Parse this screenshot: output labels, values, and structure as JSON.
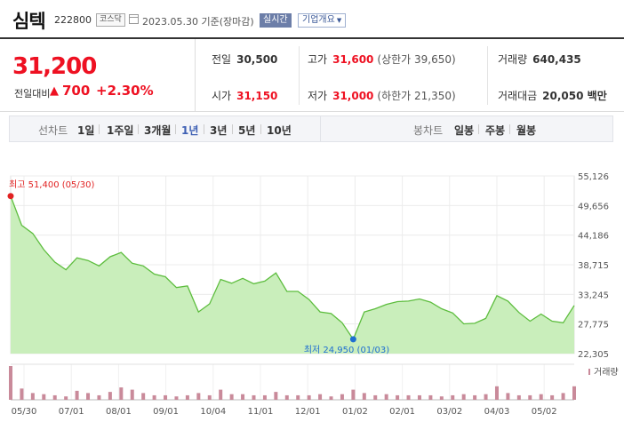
{
  "header": {
    "stock_name": "심텍",
    "stock_code": "222800",
    "market": "코스닥",
    "base_date": "2023.05.30 기준(장마감)",
    "realtime_label": "실시간",
    "company_info_label": "기업개요"
  },
  "quote": {
    "current_price": "31,200",
    "change_label": "전일대비",
    "change_arrow": "▲",
    "change_amount": "700",
    "change_rate": "+2.30%",
    "prev_close_label": "전일",
    "prev_close": "30,500",
    "high_label": "고가",
    "high": "31,600",
    "upper_limit": "(상한가 39,650)",
    "volume_label": "거래량",
    "volume": "640,435",
    "open_label": "시가",
    "open": "31,150",
    "low_label": "저가",
    "low": "31,000",
    "lower_limit": "(하한가 21,350)",
    "trade_value_label": "거래대금",
    "trade_value": "20,050 백만",
    "up_color": "#e12222"
  },
  "period_bar": {
    "line_label": "선차트",
    "periods": [
      "1일",
      "1주일",
      "3개월",
      "1년",
      "3년",
      "5년",
      "10년"
    ],
    "active_period": "1년",
    "candle_label": "봉차트",
    "candle_periods": [
      "일봉",
      "주봉",
      "월봉"
    ]
  },
  "chart_data": {
    "type": "area",
    "y_ticks": [
      "55,126",
      "49,656",
      "44,186",
      "38,715",
      "33,245",
      "27,775",
      "22,305"
    ],
    "x_ticks": [
      "05/30",
      "07/01",
      "08/01",
      "09/01",
      "10/04",
      "11/01",
      "12/01",
      "01/02",
      "02/01",
      "03/02",
      "04/03",
      "05/02"
    ],
    "ylim": [
      22305,
      55126
    ],
    "high_annotation": "최고 51,400 (05/30)",
    "low_annotation": "최저 24,950 (01/03)",
    "volume_label": "거래량",
    "line_color": "#5dbd3e",
    "fill_color": "#c9eebb",
    "high_color": "#e12222",
    "low_color": "#1f6fd1",
    "x": [
      0,
      1,
      2,
      3,
      4,
      5,
      6,
      7,
      8,
      9,
      10,
      11,
      12,
      13,
      14,
      15,
      16,
      17,
      18,
      19,
      20,
      21,
      22,
      23,
      24,
      25,
      26,
      27,
      28,
      29,
      30,
      31,
      32,
      33,
      34,
      35,
      36,
      37,
      38,
      39,
      40,
      41,
      42,
      43,
      44,
      45,
      46,
      47,
      48,
      49,
      50,
      51
    ],
    "y": [
      51400,
      46000,
      44500,
      41500,
      39200,
      37800,
      40000,
      39500,
      38500,
      40200,
      41000,
      39000,
      38500,
      37000,
      36500,
      34500,
      34800,
      30000,
      31500,
      36000,
      35300,
      36200,
      35200,
      35700,
      37200,
      33800,
      33800,
      32300,
      30000,
      29700,
      28000,
      24950,
      30000,
      30600,
      31400,
      31900,
      32000,
      32400,
      31800,
      30600,
      29800,
      27800,
      27900,
      28800,
      33000,
      32000,
      29900,
      28300,
      29600,
      28300,
      28000,
      31200
    ],
    "volumes": [
      30,
      10,
      6,
      5,
      4,
      3,
      8,
      6,
      4,
      7,
      11,
      9,
      6,
      4,
      4,
      3,
      4,
      6,
      4,
      9,
      5,
      5,
      4,
      4,
      7,
      4,
      4,
      4,
      5,
      3,
      5,
      9,
      6,
      4,
      5,
      4,
      4,
      4,
      4,
      3,
      4,
      5,
      4,
      5,
      12,
      6,
      4,
      4,
      5,
      4,
      6,
      12
    ]
  }
}
